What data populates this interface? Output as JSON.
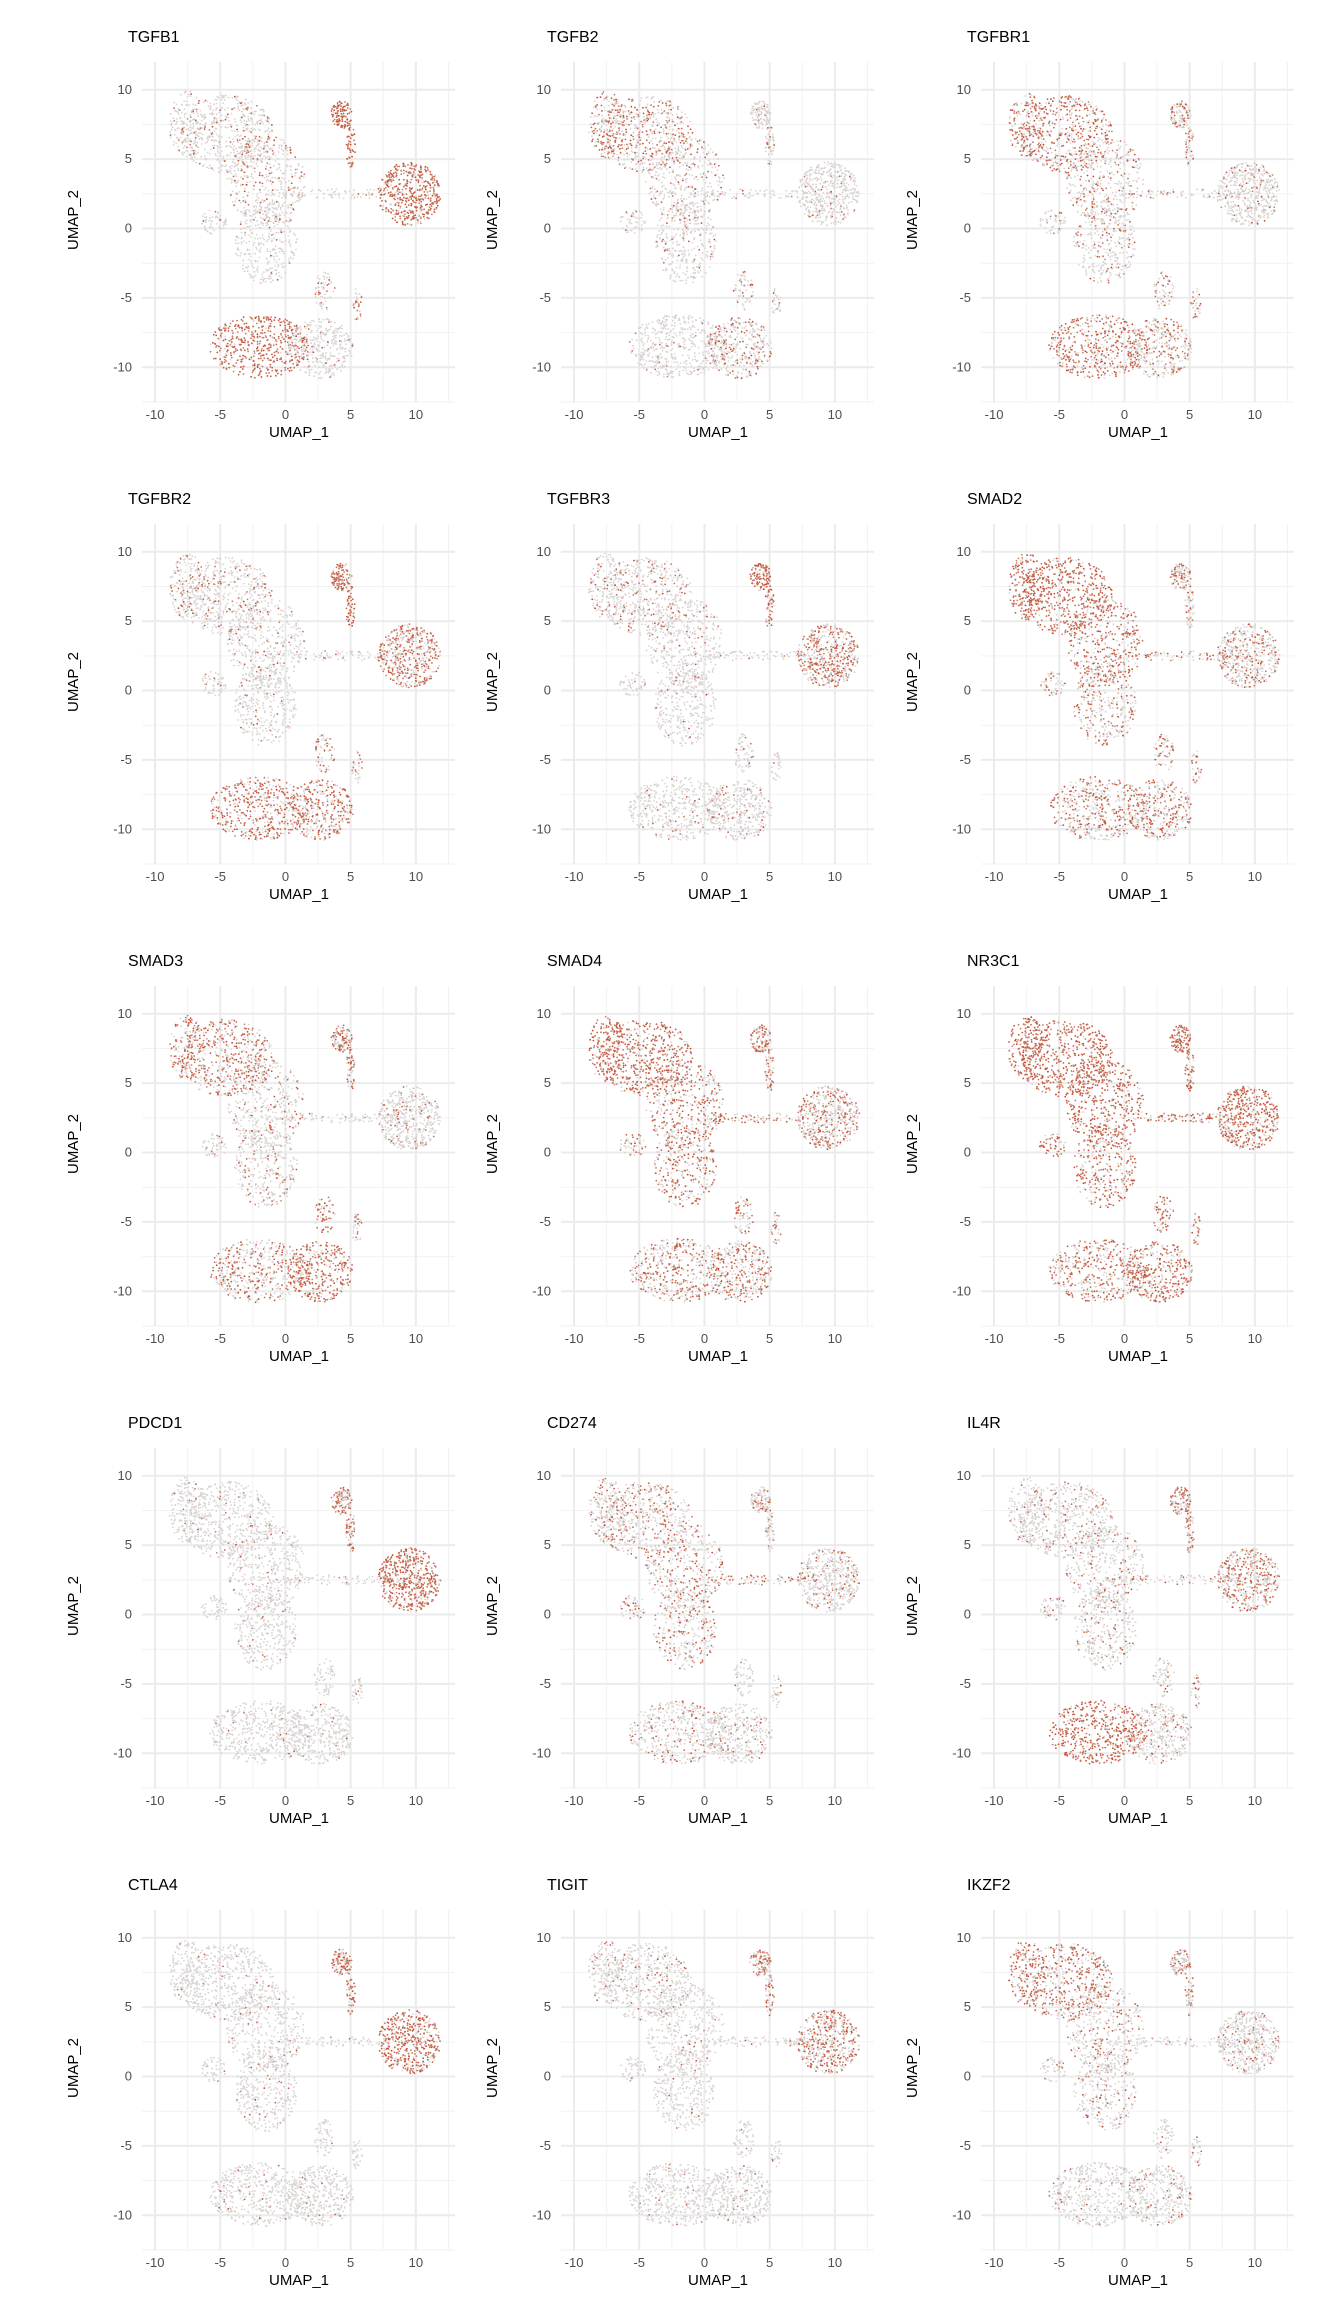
{
  "figure": {
    "xlabel": "UMAP_1",
    "ylabel": "UMAP_2"
  },
  "colors": {
    "low": "#d9d9d9",
    "high": "#c2492a",
    "grid_major": "#ebebeb",
    "grid_minor": "#f2f2f2",
    "tick_text": "#4d4d4d"
  },
  "chart_data": [
    {
      "type": "scatter",
      "title": "TGFB1",
      "xlabel": "UMAP_1",
      "ylabel": "UMAP_2",
      "xlim": [
        -11,
        13
      ],
      "ylim": [
        -12.5,
        12
      ],
      "xticks": [
        "-10",
        "-5",
        "0",
        "5",
        "10"
      ],
      "yticks": [
        "10",
        "5",
        "0",
        "-5",
        "-10"
      ],
      "grid": true,
      "legend": "none",
      "expression": {
        "c1": 0.15,
        "c2": 0.2,
        "c3": 0.05,
        "c4": 0.95,
        "c5": 0.85,
        "c6": 0.9,
        "c7": 0.1,
        "c8": 0.4
      }
    },
    {
      "type": "scatter",
      "title": "TGFB2",
      "xlabel": "UMAP_1",
      "ylabel": "UMAP_2",
      "xlim": [
        -11,
        13
      ],
      "ylim": [
        -12.5,
        12
      ],
      "xticks": [
        "-10",
        "-5",
        "0",
        "5",
        "10"
      ],
      "yticks": [
        "10",
        "5",
        "0",
        "-5",
        "-10"
      ],
      "grid": true,
      "legend": "none",
      "expression": {
        "c1": 0.45,
        "c2": 0.25,
        "c3": 0.1,
        "c4": 0.1,
        "c5": 0.05,
        "c6": 0.05,
        "c7": 0.3,
        "c8": 0.2
      }
    },
    {
      "type": "scatter",
      "title": "TGFBR1",
      "xlabel": "UMAP_1",
      "ylabel": "UMAP_2",
      "xlim": [
        -11,
        13
      ],
      "ylim": [
        -12.5,
        12
      ],
      "xticks": [
        "-10",
        "-5",
        "0",
        "5",
        "10"
      ],
      "yticks": [
        "10",
        "5",
        "0",
        "-5",
        "-10"
      ],
      "grid": true,
      "legend": "none",
      "expression": {
        "c1": 0.6,
        "c2": 0.3,
        "c3": 0.2,
        "c4": 0.4,
        "c5": 0.1,
        "c6": 0.75,
        "c7": 0.35,
        "c8": 0.5
      }
    },
    {
      "type": "scatter",
      "title": "TGFBR2",
      "xlabel": "UMAP_1",
      "ylabel": "UMAP_2",
      "xlim": [
        -11,
        13
      ],
      "ylim": [
        -12.5,
        12
      ],
      "xticks": [
        "-10",
        "-5",
        "0",
        "5",
        "10"
      ],
      "yticks": [
        "10",
        "5",
        "0",
        "-5",
        "-10"
      ],
      "grid": true,
      "legend": "none",
      "expression": {
        "c1": 0.2,
        "c2": 0.15,
        "c3": 0.1,
        "c4": 0.9,
        "c5": 0.6,
        "c6": 0.7,
        "c7": 0.6,
        "c8": 0.3
      }
    },
    {
      "type": "scatter",
      "title": "TGFBR3",
      "xlabel": "UMAP_1",
      "ylabel": "UMAP_2",
      "xlim": [
        -11,
        13
      ],
      "ylim": [
        -12.5,
        12
      ],
      "xticks": [
        "-10",
        "-5",
        "0",
        "5",
        "10"
      ],
      "yticks": [
        "10",
        "5",
        "0",
        "-5",
        "-10"
      ],
      "grid": true,
      "legend": "none",
      "expression": {
        "c1": 0.2,
        "c2": 0.1,
        "c3": 0.05,
        "c4": 0.8,
        "c5": 0.6,
        "c6": 0.05,
        "c7": 0.1,
        "c8": 0.1
      }
    },
    {
      "type": "scatter",
      "title": "SMAD2",
      "xlabel": "UMAP_1",
      "ylabel": "UMAP_2",
      "xlim": [
        -11,
        13
      ],
      "ylim": [
        -12.5,
        12
      ],
      "xticks": [
        "-10",
        "-5",
        "0",
        "5",
        "10"
      ],
      "yticks": [
        "10",
        "5",
        "0",
        "-5",
        "-10"
      ],
      "grid": true,
      "legend": "none",
      "expression": {
        "c1": 0.9,
        "c2": 0.7,
        "c3": 0.4,
        "c4": 0.4,
        "c5": 0.35,
        "c6": 0.5,
        "c7": 0.5,
        "c8": 0.5
      }
    },
    {
      "type": "scatter",
      "title": "SMAD3",
      "xlabel": "UMAP_1",
      "ylabel": "UMAP_2",
      "xlim": [
        -11,
        13
      ],
      "ylim": [
        -12.5,
        12
      ],
      "xticks": [
        "-10",
        "-5",
        "0",
        "5",
        "10"
      ],
      "yticks": [
        "10",
        "5",
        "0",
        "-5",
        "-10"
      ],
      "grid": true,
      "legend": "none",
      "expression": {
        "c1": 0.6,
        "c2": 0.2,
        "c3": 0.2,
        "c4": 0.6,
        "c5": 0.1,
        "c6": 0.5,
        "c7": 0.7,
        "c8": 0.3
      }
    },
    {
      "type": "scatter",
      "title": "SMAD4",
      "xlabel": "UMAP_1",
      "ylabel": "UMAP_2",
      "xlim": [
        -11,
        13
      ],
      "ylim": [
        -12.5,
        12
      ],
      "xticks": [
        "-10",
        "-5",
        "0",
        "5",
        "10"
      ],
      "yticks": [
        "10",
        "5",
        "0",
        "-5",
        "-10"
      ],
      "grid": true,
      "legend": "none",
      "expression": {
        "c1": 0.9,
        "c2": 0.6,
        "c3": 0.5,
        "c4": 0.6,
        "c5": 0.4,
        "c6": 0.5,
        "c7": 0.45,
        "c8": 0.55
      }
    },
    {
      "type": "scatter",
      "title": "NR3C1",
      "xlabel": "UMAP_1",
      "ylabel": "UMAP_2",
      "xlim": [
        -11,
        13
      ],
      "ylim": [
        -12.5,
        12
      ],
      "xticks": [
        "-10",
        "-5",
        "0",
        "5",
        "10"
      ],
      "yticks": [
        "10",
        "5",
        "0",
        "-5",
        "-10"
      ],
      "grid": true,
      "legend": "none",
      "expression": {
        "c1": 0.95,
        "c2": 0.8,
        "c3": 0.7,
        "c4": 0.9,
        "c5": 0.75,
        "c6": 0.6,
        "c7": 0.7,
        "c8": 0.7
      }
    },
    {
      "type": "scatter",
      "title": "PDCD1",
      "xlabel": "UMAP_1",
      "ylabel": "UMAP_2",
      "xlim": [
        -11,
        13
      ],
      "ylim": [
        -12.5,
        12
      ],
      "xticks": [
        "-10",
        "-5",
        "0",
        "5",
        "10"
      ],
      "yticks": [
        "10",
        "5",
        "0",
        "-5",
        "-10"
      ],
      "grid": true,
      "legend": "none",
      "expression": {
        "c1": 0.05,
        "c2": 0.05,
        "c3": 0.05,
        "c4": 0.6,
        "c5": 0.85,
        "c6": 0.05,
        "c7": 0.05,
        "c8": 0.1
      }
    },
    {
      "type": "scatter",
      "title": "CD274",
      "xlabel": "UMAP_1",
      "ylabel": "UMAP_2",
      "xlim": [
        -11,
        13
      ],
      "ylim": [
        -12.5,
        12
      ],
      "xticks": [
        "-10",
        "-5",
        "0",
        "5",
        "10"
      ],
      "yticks": [
        "10",
        "5",
        "0",
        "-5",
        "-10"
      ],
      "grid": true,
      "legend": "none",
      "expression": {
        "c1": 0.3,
        "c2": 0.3,
        "c3": 0.4,
        "c4": 0.3,
        "c5": 0.15,
        "c6": 0.2,
        "c7": 0.1,
        "c8": 0.25
      }
    },
    {
      "type": "scatter",
      "title": "IL4R",
      "xlabel": "UMAP_1",
      "ylabel": "UMAP_2",
      "xlim": [
        -11,
        13
      ],
      "ylim": [
        -12.5,
        12
      ],
      "xticks": [
        "-10",
        "-5",
        "0",
        "5",
        "10"
      ],
      "yticks": [
        "10",
        "5",
        "0",
        "-5",
        "-10"
      ],
      "grid": true,
      "legend": "none",
      "expression": {
        "c1": 0.15,
        "c2": 0.15,
        "c3": 0.2,
        "c4": 0.7,
        "c5": 0.5,
        "c6": 0.9,
        "c7": 0.15,
        "c8": 0.35
      }
    },
    {
      "type": "scatter",
      "title": "CTLA4",
      "xlabel": "UMAP_1",
      "ylabel": "UMAP_2",
      "xlim": [
        -11,
        13
      ],
      "ylim": [
        -12.5,
        12
      ],
      "xticks": [
        "-10",
        "-5",
        "0",
        "5",
        "10"
      ],
      "yticks": [
        "10",
        "5",
        "0",
        "-5",
        "-10"
      ],
      "grid": true,
      "legend": "none",
      "expression": {
        "c1": 0.05,
        "c2": 0.05,
        "c3": 0.05,
        "c4": 0.7,
        "c5": 0.75,
        "c6": 0.05,
        "c7": 0.05,
        "c8": 0.05
      }
    },
    {
      "type": "scatter",
      "title": "TIGIT",
      "xlabel": "UMAP_1",
      "ylabel": "UMAP_2",
      "xlim": [
        -11,
        13
      ],
      "ylim": [
        -12.5,
        12
      ],
      "xticks": [
        "-10",
        "-5",
        "0",
        "5",
        "10"
      ],
      "yticks": [
        "10",
        "5",
        "0",
        "-5",
        "-10"
      ],
      "grid": true,
      "legend": "none",
      "expression": {
        "c1": 0.1,
        "c2": 0.05,
        "c3": 0.05,
        "c4": 0.5,
        "c5": 0.55,
        "c6": 0.05,
        "c7": 0.05,
        "c8": 0.1
      }
    },
    {
      "type": "scatter",
      "title": "IKZF2",
      "xlabel": "UMAP_1",
      "ylabel": "UMAP_2",
      "xlim": [
        -11,
        13
      ],
      "ylim": [
        -12.5,
        12
      ],
      "xticks": [
        "-10",
        "-5",
        "0",
        "5",
        "10"
      ],
      "yticks": [
        "10",
        "5",
        "0",
        "-5",
        "-10"
      ],
      "grid": true,
      "legend": "none",
      "expression": {
        "c1": 0.6,
        "c2": 0.3,
        "c3": 0.15,
        "c4": 0.4,
        "c5": 0.15,
        "c6": 0.1,
        "c7": 0.1,
        "c8": 0.15
      }
    }
  ]
}
